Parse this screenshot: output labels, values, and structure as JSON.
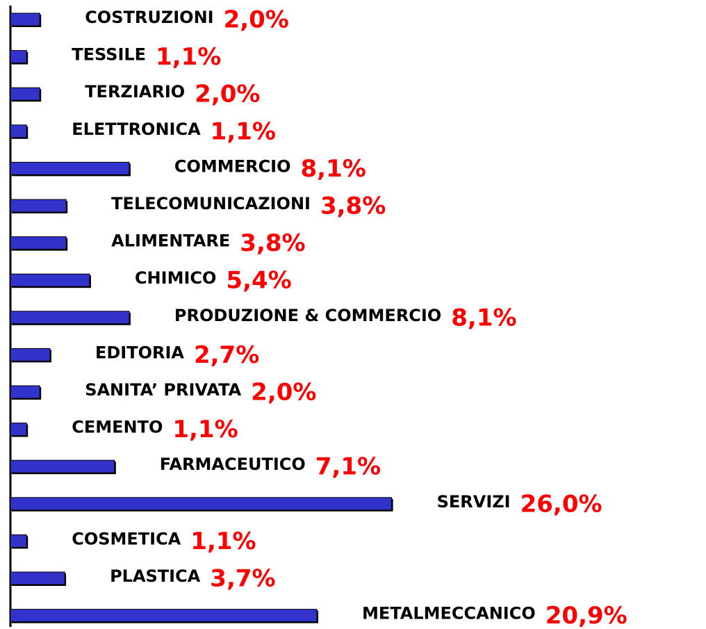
{
  "chart_data": {
    "type": "bar",
    "orientation": "horizontal",
    "color": "#3333cc",
    "categories": [
      "COSTRUZIONI",
      "TESSILE",
      "TERZIARIO",
      "ELETTRONICA",
      "COMMERCIO",
      "TELECOMUNICAZIONI",
      "ALIMENTARE",
      "CHIMICO",
      "PRODUZIONE & COMMERCIO",
      "EDITORIA",
      "SANITA’ PRIVATA",
      "CEMENTO",
      "FARMACEUTICO",
      "SERVIZI",
      "COSMETICA",
      "PLASTICA",
      "METALMECCANICO"
    ],
    "values": [
      2.0,
      1.1,
      2.0,
      1.1,
      8.1,
      3.8,
      3.8,
      5.4,
      8.1,
      2.7,
      2.0,
      1.1,
      7.1,
      26.0,
      1.1,
      3.7,
      20.9
    ],
    "value_labels": [
      "2,0%",
      "1,1%",
      "2,0%",
      "1,1%",
      "8,1%",
      "3,8%",
      "3,8%",
      "5,4%",
      "8,1%",
      "2,7%",
      "2,0%",
      "1,1%",
      "7,1%",
      "26,0%",
      "1,1%",
      "3,7%",
      "20,9%"
    ],
    "value_label_color": "#ff0000"
  }
}
